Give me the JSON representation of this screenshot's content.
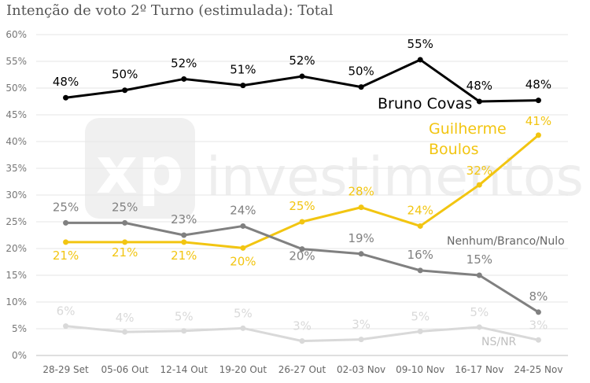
{
  "chart_data": {
    "type": "line",
    "title": "Intenção de voto 2º Turno (estimulada): Total",
    "categories": [
      "28-29 Set",
      "05-06 Out",
      "12-14 Out",
      "19-20 Out",
      "26-27 Out",
      "02-03 Nov",
      "09-10 Nov",
      "16-17 Nov",
      "24-25 Nov"
    ],
    "y_ticks": [
      "0%",
      "5%",
      "10%",
      "15%",
      "20%",
      "25%",
      "30%",
      "35%",
      "40%",
      "45%",
      "50%",
      "55%",
      "60%"
    ],
    "ylim": [
      0,
      60
    ],
    "grid": true,
    "legend": "none (series labeled directly on chart)",
    "watermark": "xp investimentos",
    "series": [
      {
        "name": "Bruno Covas",
        "color": "#000000",
        "values": [
          48.2,
          49.6,
          51.7,
          50.5,
          52.2,
          50.2,
          55.3,
          47.5,
          47.7
        ],
        "labels": [
          "48%",
          "50%",
          "52%",
          "51%",
          "52%",
          "50%",
          "55%",
          "48%",
          "48%"
        ]
      },
      {
        "name": "Guilherme Boulos",
        "name_lines": [
          "Guilherme",
          "Boulos"
        ],
        "color": "#f2c511",
        "values": [
          21.2,
          21.2,
          21.2,
          20.1,
          25.0,
          27.7,
          24.2,
          31.9,
          41.2
        ],
        "labels": [
          "21%",
          "21%",
          "21%",
          "20%",
          "25%",
          "28%",
          "24%",
          "32%",
          "41%"
        ]
      },
      {
        "name": "Nenhum/Branco/Nulo",
        "color": "#808080",
        "values": [
          24.8,
          24.8,
          22.5,
          24.2,
          19.9,
          19.0,
          15.9,
          15.0,
          8.1
        ],
        "labels": [
          "25%",
          "25%",
          "23%",
          "24%",
          "20%",
          "19%",
          "16%",
          "15%",
          "8%"
        ]
      },
      {
        "name": "NS/NR",
        "color": "#d9d9d9",
        "values": [
          5.5,
          4.4,
          4.6,
          5.1,
          2.7,
          3.0,
          4.5,
          5.3,
          2.9
        ],
        "labels": [
          "6%",
          "4%",
          "5%",
          "5%",
          "3%",
          "3%",
          "5%",
          "5%",
          "3%"
        ]
      }
    ]
  }
}
